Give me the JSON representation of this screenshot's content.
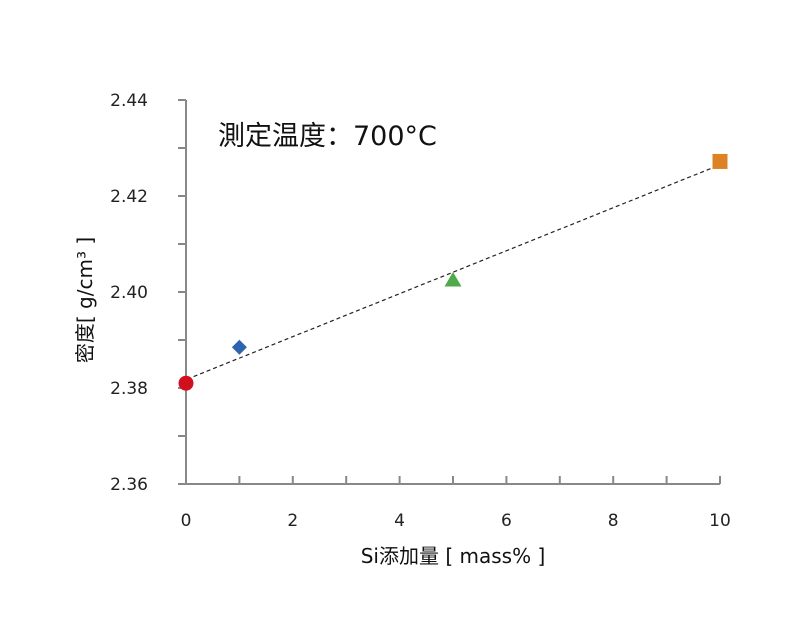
{
  "chart_data": {
    "type": "scatter",
    "annotation": "測定温度：700°C",
    "xlabel": "Si添加量 [ mass% ]",
    "ylabel": "密度[ g/cm³ ]",
    "xlim": [
      0,
      10
    ],
    "ylim": [
      2.36,
      2.44
    ],
    "x_ticks": [
      0,
      2,
      4,
      6,
      8,
      10
    ],
    "x_tick_labels": [
      "0",
      "2",
      "4",
      "6",
      "8",
      "10"
    ],
    "x_minor_ticks": [
      1,
      3,
      5,
      7,
      9
    ],
    "y_ticks": [
      2.36,
      2.38,
      2.4,
      2.42,
      2.44
    ],
    "y_tick_labels": [
      "2.36",
      "2.38",
      "2.40",
      "2.42",
      "2.44"
    ],
    "y_minor_ticks": [
      2.37,
      2.39,
      2.41,
      2.43
    ],
    "grid": false,
    "legend": "none",
    "points": [
      {
        "x": 0,
        "y": 2.381,
        "marker": "circle",
        "color": "#d0101e"
      },
      {
        "x": 1,
        "y": 2.3885,
        "marker": "diamond",
        "color": "#2e63ad"
      },
      {
        "x": 5,
        "y": 2.4025,
        "marker": "triangle",
        "color": "#4faa4c"
      },
      {
        "x": 10,
        "y": 2.4272,
        "marker": "square",
        "color": "#dd8326"
      }
    ],
    "trendline": {
      "style": "dashed",
      "color": "#222222",
      "x": [
        -0.1,
        10
      ],
      "y": [
        2.3813,
        2.4265
      ]
    }
  }
}
